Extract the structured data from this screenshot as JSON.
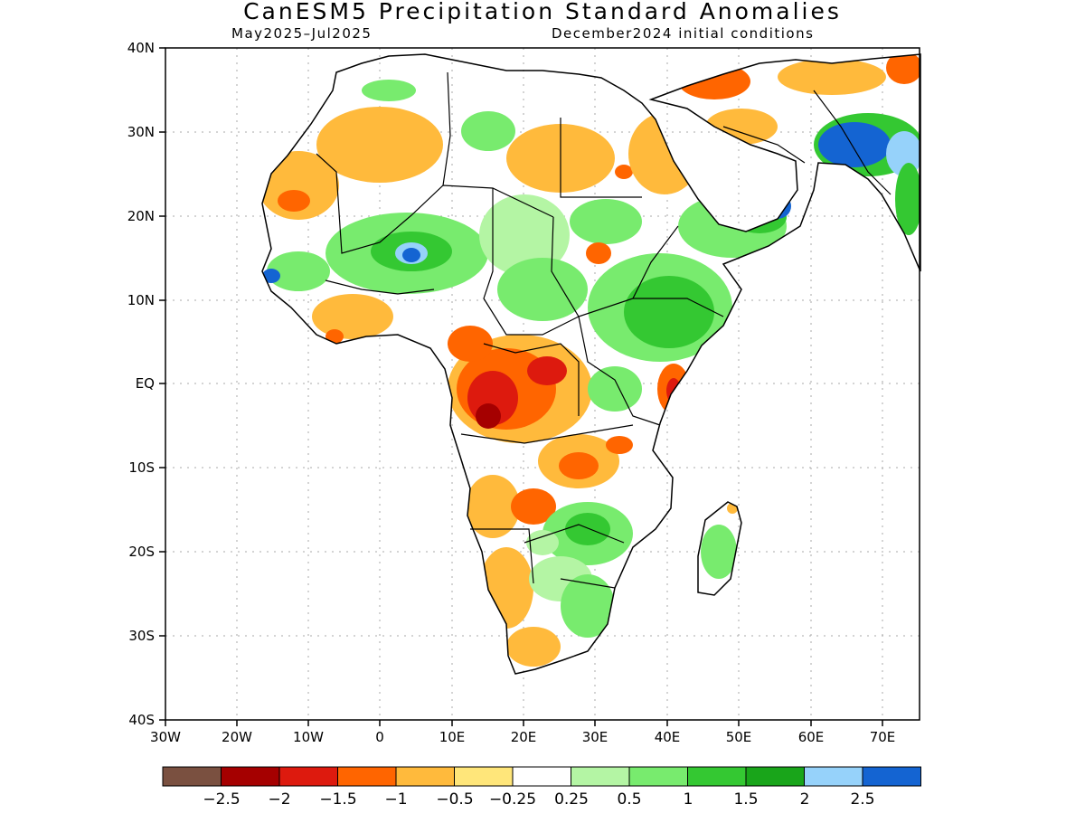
{
  "title": "CanESM5 Precipitation Standard Anomalies",
  "subtitle_left": "May2025–Jul2025",
  "subtitle_right": "December2024 initial conditions",
  "lat_labels": [
    "40N",
    "30N",
    "20N",
    "10N",
    "EQ",
    "10S",
    "20S",
    "30S",
    "40S"
  ],
  "lon_labels": [
    "30W",
    "20W",
    "10W",
    "0",
    "10E",
    "20E",
    "30E",
    "40E",
    "50E",
    "60E",
    "70E"
  ],
  "colorbar": {
    "colors": [
      "#7a5040",
      "#a50000",
      "#dd1a0e",
      "#ff6500",
      "#ffba3c",
      "#ffe67a",
      "#ffffff",
      "#b4f5a4",
      "#78eb6e",
      "#34c832",
      "#19a51a",
      "#96d2fa",
      "#1464d2"
    ],
    "labels": [
      "−2.5",
      "−2",
      "−1.5",
      "−1",
      "−0.5",
      "−0.25",
      "0.25",
      "0.5",
      "1",
      "1.5",
      "2",
      "2.5"
    ]
  }
}
